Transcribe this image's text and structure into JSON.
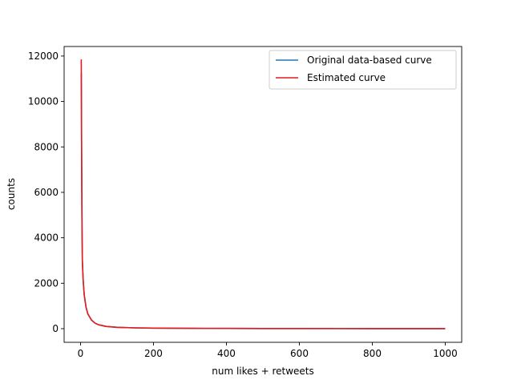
{
  "chart_data": {
    "type": "line",
    "title": "",
    "xlabel": "num likes + retweets",
    "ylabel": "counts",
    "xlim": [
      -45,
      1045
    ],
    "ylim": [
      -600,
      12420
    ],
    "xticks": [
      0,
      200,
      400,
      600,
      800,
      1000
    ],
    "yticks": [
      0,
      2000,
      4000,
      6000,
      8000,
      10000,
      12000
    ],
    "grid": false,
    "legend_position": "upper right",
    "series": [
      {
        "name": "Original data-based curve",
        "color": "#1f77b4",
        "x": [
          2,
          3,
          4,
          5,
          7,
          10,
          15,
          20,
          30,
          40,
          50,
          70,
          100,
          150,
          200,
          300,
          400,
          500,
          600,
          700,
          800,
          900,
          1000
        ],
        "y": [
          11250,
          7600,
          4500,
          3000,
          2200,
          1500,
          950,
          650,
          380,
          240,
          170,
          100,
          60,
          35,
          25,
          15,
          10,
          7,
          5,
          4,
          3,
          2,
          2
        ]
      },
      {
        "name": "Estimated curve",
        "color": "#e41a1c",
        "x": [
          2,
          3,
          4,
          5,
          7,
          10,
          15,
          20,
          30,
          40,
          50,
          70,
          100,
          150,
          200,
          300,
          400,
          500,
          600,
          700,
          800,
          900,
          1000
        ],
        "y": [
          11850,
          7700,
          4600,
          3000,
          2200,
          1500,
          950,
          650,
          380,
          240,
          170,
          100,
          60,
          35,
          25,
          15,
          10,
          7,
          5,
          4,
          3,
          2,
          2
        ]
      }
    ]
  }
}
